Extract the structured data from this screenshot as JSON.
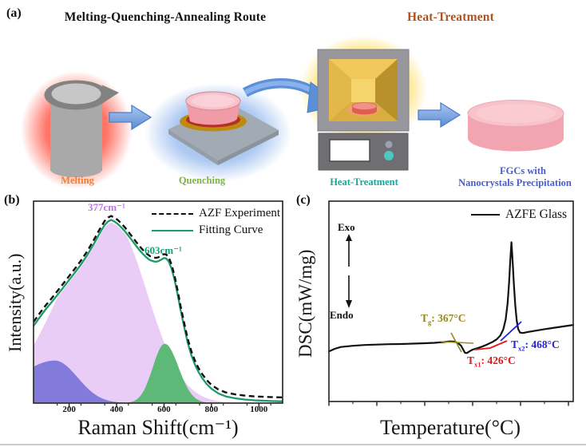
{
  "panel_a": {
    "label": "(a)",
    "title_left": "Melting-Quenching-Annealing Route",
    "title_right": "Heat-Treatment",
    "title_right_color": "#b0521e",
    "steps": {
      "melting": {
        "label": "Melting",
        "color": "#ef8130"
      },
      "quenching": {
        "label": "Quenching",
        "color": "#7cb344"
      },
      "heat_treatment": {
        "label": "Heat-Treatment",
        "color": "#1ba69c"
      },
      "product": {
        "line1": "FGCs with",
        "line2": "Nanocrystals Precipitation",
        "color": "#4a5ec8"
      }
    }
  },
  "chart_data": [
    {
      "type": "area",
      "panel_label": "(b)",
      "xlabel": "Raman Shift(cm⁻¹)",
      "ylabel": "Intensity(a.u.)",
      "xlim": [
        50,
        1100
      ],
      "xticks": [
        200,
        400,
        600,
        800,
        1000
      ],
      "y_units": "normalized (a.u.), no y ticks shown",
      "grid": false,
      "legend_position": "top-right",
      "legend": [
        {
          "label": "AZF Experiment",
          "style": "dashed",
          "color": "#111111"
        },
        {
          "label": "Fitting Curve",
          "style": "solid",
          "color": "#1d9b66"
        }
      ],
      "peak_labels": [
        {
          "text": "377cm⁻¹",
          "x": 377,
          "color": "#bb76e4"
        },
        {
          "text": "603cm⁻¹",
          "x": 603,
          "color": "#0fa37a"
        }
      ],
      "components": [
        {
          "name": "band-377",
          "center": 377,
          "sigma_left": 215,
          "sigma_right": 150,
          "amplitude": 0.93,
          "fill": "#e9cdf6",
          "clamp_to_fit": true
        },
        {
          "name": "band-140",
          "center": 140,
          "sigma_left": 160,
          "sigma_right": 95,
          "amplitude": 0.215,
          "fill": "#837bdb"
        },
        {
          "name": "band-603",
          "center": 603,
          "sigma_left": 50,
          "sigma_right": 58,
          "amplitude": 0.3,
          "fill": "#5eb878"
        }
      ],
      "fit_curve": {
        "x": [
          50,
          75,
          100,
          125,
          150,
          175,
          200,
          225,
          250,
          275,
          300,
          325,
          350,
          365,
          377,
          390,
          405,
          420,
          435,
          450,
          465,
          480,
          495,
          510,
          525,
          540,
          555,
          565,
          575,
          590,
          600,
          610,
          620,
          632,
          645,
          658,
          670,
          685,
          700,
          715,
          730,
          745,
          760,
          780,
          800,
          830,
          860,
          900,
          940,
          980,
          1020,
          1060,
          1100
        ],
        "y": [
          0.39,
          0.432,
          0.472,
          0.508,
          0.545,
          0.583,
          0.622,
          0.66,
          0.7,
          0.745,
          0.795,
          0.85,
          0.9,
          0.918,
          0.925,
          0.918,
          0.905,
          0.888,
          0.868,
          0.845,
          0.822,
          0.798,
          0.775,
          0.755,
          0.737,
          0.723,
          0.716,
          0.714,
          0.716,
          0.726,
          0.733,
          0.73,
          0.715,
          0.68,
          0.62,
          0.545,
          0.47,
          0.385,
          0.305,
          0.243,
          0.195,
          0.158,
          0.128,
          0.096,
          0.072,
          0.048,
          0.034,
          0.024,
          0.018,
          0.014,
          0.012,
          0.01,
          0.009
        ]
      },
      "experiment_offset": 0.02
    },
    {
      "type": "line",
      "panel_label": "(c)",
      "xlabel": "Temperature(°C)",
      "ylabel": "DSC(mW/mg)",
      "xlim": [
        100,
        610
      ],
      "xticks": [
        100,
        200,
        300,
        400,
        500,
        600
      ],
      "y_units": "normalized (a.u.), no y ticks shown",
      "grid": false,
      "legend_position": "top-right",
      "legend": [
        {
          "label": "AZFE Glass",
          "style": "solid",
          "color": "#111111"
        }
      ],
      "direction_labels": {
        "up": "Exo",
        "down": "Endo"
      },
      "annotations": [
        {
          "prefix": "T",
          "sub": "g",
          "text": ": 367°C",
          "value_c": 367,
          "color": "#97891c"
        },
        {
          "prefix": "T",
          "sub": "x1",
          "text": ": 426°C",
          "value_c": 426,
          "color": "#e51616"
        },
        {
          "prefix": "T",
          "sub": "x2",
          "text": ": 468°C",
          "value_c": 468,
          "color": "#2323e0"
        }
      ],
      "curve": {
        "x": [
          100,
          112,
          125,
          150,
          175,
          200,
          225,
          250,
          275,
          300,
          320,
          340,
          352,
          362,
          370,
          376,
          380,
          384,
          388,
          393,
          400,
          410,
          420,
          426,
          434,
          442,
          450,
          458,
          464,
          469,
          473,
          476,
          478.5,
          481,
          483.5,
          486,
          489,
          492,
          495,
          499,
          505,
          515,
          530,
          550,
          570,
          590,
          610
        ],
        "y": [
          0.25,
          0.263,
          0.272,
          0.278,
          0.282,
          0.284,
          0.286,
          0.287,
          0.289,
          0.291,
          0.293,
          0.297,
          0.3,
          0.299,
          0.291,
          0.278,
          0.26,
          0.243,
          0.242,
          0.25,
          0.259,
          0.266,
          0.274,
          0.28,
          0.289,
          0.298,
          0.31,
          0.33,
          0.36,
          0.41,
          0.49,
          0.59,
          0.7,
          0.795,
          0.7,
          0.59,
          0.48,
          0.405,
          0.362,
          0.344,
          0.342,
          0.347,
          0.353,
          0.361,
          0.368,
          0.375,
          0.382
        ]
      }
    }
  ]
}
